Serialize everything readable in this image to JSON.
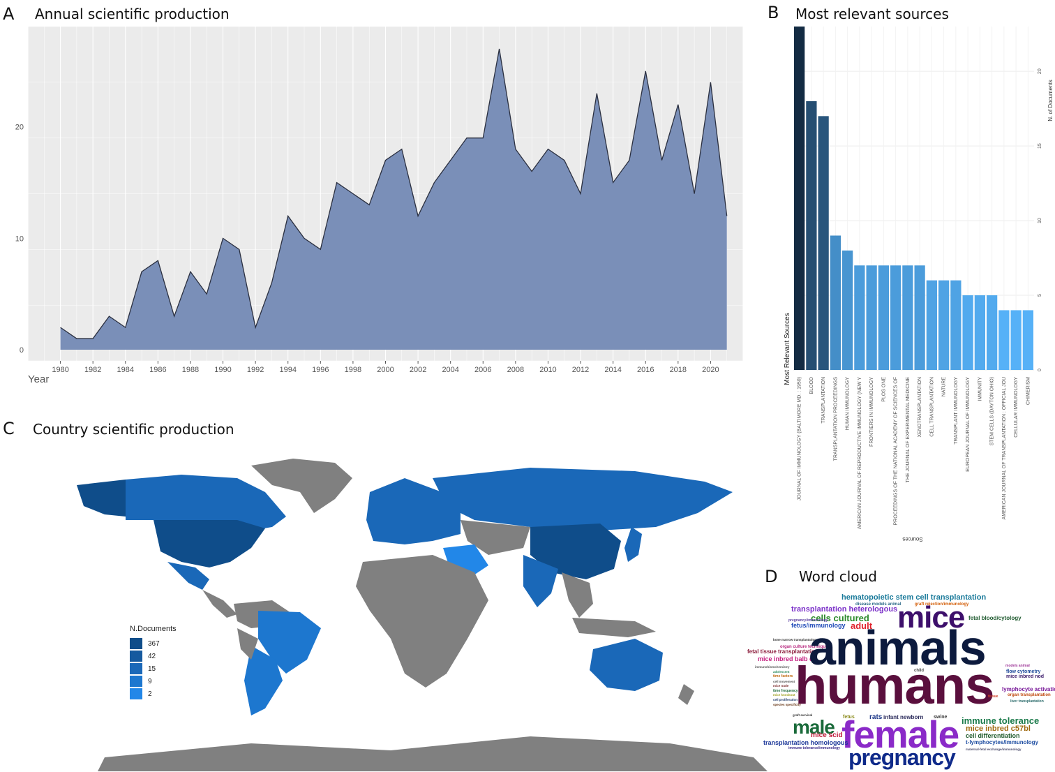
{
  "panels": {
    "a": {
      "letter": "A",
      "title": "Annual scientific production"
    },
    "b": {
      "letter": "B",
      "title": "Most relevant sources"
    },
    "c": {
      "letter": "C",
      "title": "Country scientific production"
    },
    "d": {
      "letter": "D",
      "title": "Word cloud"
    }
  },
  "chart_data": [
    {
      "type": "area",
      "title": "Annual scientific production",
      "xlabel": "Year",
      "ylabel": "",
      "x": [
        1980,
        1981,
        1982,
        1983,
        1984,
        1985,
        1986,
        1987,
        1988,
        1989,
        1990,
        1991,
        1992,
        1993,
        1994,
        1995,
        1996,
        1997,
        1998,
        1999,
        2000,
        2001,
        2002,
        2003,
        2004,
        2005,
        2006,
        2007,
        2008,
        2009,
        2010,
        2011,
        2012,
        2013,
        2014,
        2015,
        2016,
        2017,
        2018,
        2019,
        2020,
        2021
      ],
      "values": [
        2,
        1,
        1,
        3,
        2,
        7,
        8,
        3,
        7,
        5,
        10,
        9,
        2,
        6,
        12,
        10,
        9,
        15,
        14,
        13,
        17,
        18,
        12,
        15,
        17,
        19,
        19,
        27,
        18,
        16,
        18,
        17,
        14,
        23,
        15,
        17,
        25,
        17,
        22,
        14,
        24,
        12
      ],
      "xticks": [
        1980,
        1982,
        1984,
        1986,
        1988,
        1990,
        1992,
        1994,
        1996,
        1998,
        2000,
        2002,
        2004,
        2006,
        2008,
        2010,
        2012,
        2014,
        2016,
        2018,
        2020
      ],
      "yticks": [
        0,
        10,
        20
      ],
      "xlim": [
        1978,
        2022
      ],
      "ylim": [
        -1,
        29
      ],
      "grid": true,
      "colors": {
        "fill": "#7a8fb8",
        "line": "#2b3040",
        "panel": "#ebebeb"
      }
    },
    {
      "type": "bar",
      "title": "Most relevant sources",
      "xlabel": "Sources",
      "ylabel": "N. of Documents",
      "side_label": "Most Relevant Sources",
      "categories": [
        "JOURNAL OF IMMUNOLOGY (BALTIMORE MD. : 1950)",
        "BLOOD",
        "TRANSPLANTATION",
        "TRANSPLANTATION PROCEEDINGS",
        "HUMAN IMMUNOLOGY",
        "AMERICAN JOURNAL OF REPRODUCTIVE IMMUNOLOGY (NEW Y",
        "FRONTIERS IN IMMUNOLOGY",
        "PLOS ONE",
        "PROCEEDINGS OF THE NATIONAL ACADEMY OF SCIENCES OF",
        "THE JOURNAL OF EXPERIMENTAL MEDICINE",
        "XENOTRANSPLANTATION",
        "CELL TRANSPLANTATION",
        "NATURE",
        "TRANSPLANT IMMUNOLOGY",
        "EUROPEAN JOURNAL OF IMMUNOLOGY",
        "IMMUNITY",
        "STEM CELLS (DAYTON OHIO)",
        "AMERICAN JOURNAL OF TRANSPLANTATION : OFFICIAL JOU",
        "CELLULAR IMMUNOLOGY",
        "CHIMERISM"
      ],
      "values": [
        23,
        18,
        17,
        9,
        8,
        7,
        7,
        7,
        7,
        7,
        7,
        6,
        6,
        6,
        5,
        5,
        5,
        4,
        4,
        4
      ],
      "yticks": [
        0,
        5,
        10,
        15,
        20
      ],
      "ylim": [
        0,
        23
      ],
      "colors": {
        "dark": "#132b43",
        "light": "#56b1f7"
      }
    }
  ],
  "map": {
    "title": "Country scientific production",
    "legend_title": "N.Documents",
    "legend": [
      {
        "label": "367",
        "color": "#0f4d8a"
      },
      {
        "label": "42",
        "color": "#165a9f"
      },
      {
        "label": "15",
        "color": "#1a68b8"
      },
      {
        "label": "9",
        "color": "#1d77cf"
      },
      {
        "label": "2",
        "color": "#2287e8"
      }
    ],
    "no_data_color": "#808080"
  },
  "wordcloud": {
    "words": [
      {
        "text": "hematopoietic stem cell transplantation",
        "color": "#1a7a9a"
      },
      {
        "text": "disease models animal",
        "color": "#2e6b8a"
      },
      {
        "text": "graft rejection/immunology",
        "color": "#d35f0a"
      },
      {
        "text": "transplantation heterologous",
        "color": "#7a2fc8"
      },
      {
        "text": "cells cultured",
        "color": "#2b8a2b"
      },
      {
        "text": "mice",
        "color": "#3d0f6b"
      },
      {
        "text": "fetal blood/cytology",
        "color": "#1f5a2f"
      },
      {
        "text": "pregnancy/immunology",
        "color": "#5a3fa0"
      },
      {
        "text": "fetus/immunology",
        "color": "#1f4ab8"
      },
      {
        "text": "adult",
        "color": "#e0202a"
      },
      {
        "text": "bone marrow transplantation",
        "color": "#333333"
      },
      {
        "text": "organ culture techniques",
        "color": "#b82a80"
      },
      {
        "text": "fetal tissue transplantation",
        "color": "#8a1a3a"
      },
      {
        "text": "mice inbred balb c",
        "color": "#c42080"
      },
      {
        "text": "animals",
        "color": "#0c1a3d"
      },
      {
        "text": "humans",
        "color": "#5a0f3d"
      },
      {
        "text": "immunohistochemistry",
        "color": "#555555"
      },
      {
        "text": "adolescent",
        "color": "#2a8a5a"
      },
      {
        "text": "time factors",
        "color": "#c06a10"
      },
      {
        "text": "cell movement",
        "color": "#5a5a5a"
      },
      {
        "text": "mice nude",
        "color": "#7a2a2a"
      },
      {
        "text": "time frequency",
        "color": "#1f6a3a"
      },
      {
        "text": "mice knockout",
        "color": "#a0a020"
      },
      {
        "text": "cell proliferation",
        "color": "#1f3a6a"
      },
      {
        "text": "species specificity",
        "color": "#6a3a1a"
      },
      {
        "text": "child",
        "color": "#4a4a4a"
      },
      {
        "text": "models animal",
        "color": "#a03a9a"
      },
      {
        "text": "flow cytometry",
        "color": "#1f4a9a"
      },
      {
        "text": "mice inbred nod",
        "color": "#3a1a6a"
      },
      {
        "text": "lymphocyte activation",
        "color": "#7a1a9a"
      },
      {
        "text": "organ transplantation",
        "color": "#c04a10"
      },
      {
        "text": "liver transplantation",
        "color": "#2a6a6a"
      },
      {
        "text": "tissue",
        "color": "#d0402a"
      },
      {
        "text": "graft survival",
        "color": "#333333"
      },
      {
        "text": "fetus",
        "color": "#8a8a1a"
      },
      {
        "text": "rats",
        "color": "#1f3a8a"
      },
      {
        "text": "infant newborn",
        "color": "#2a2a5a"
      },
      {
        "text": "swine",
        "color": "#3a3a3a"
      },
      {
        "text": "male",
        "color": "#1a6a3a"
      },
      {
        "text": "female",
        "color": "#8a2ac8"
      },
      {
        "text": "immune tolerance",
        "color": "#1a7a4a"
      },
      {
        "text": "mice inbred c57bl",
        "color": "#a06a10"
      },
      {
        "text": "mice scid",
        "color": "#c01a3a"
      },
      {
        "text": "cell differentiation",
        "color": "#1f5a2a"
      },
      {
        "text": "transplantation homologous",
        "color": "#1f3a9a"
      },
      {
        "text": "t-lymphocytes/immunology",
        "color": "#1a4aa0"
      },
      {
        "text": "immune tolerance/immunology",
        "color": "#3a2a8a"
      },
      {
        "text": "maternal-fetal exchange/immunology",
        "color": "#4a4a6a"
      },
      {
        "text": "pregnancy",
        "color": "#0f2a8a"
      }
    ]
  }
}
